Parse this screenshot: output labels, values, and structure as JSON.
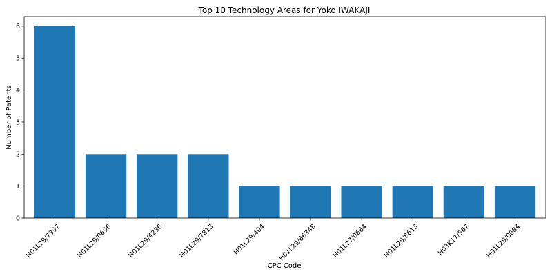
{
  "chart_data": {
    "type": "bar",
    "title": "Top 10 Technology Areas for Yoko IWAKAJI",
    "xlabel": "CPC Code",
    "ylabel": "Number of Patents",
    "categories": [
      "H01L29/7397",
      "H01L29/0696",
      "H01L29/4236",
      "H01L29/7813",
      "H01L29/404",
      "H01L29/66348",
      "H01L27/0664",
      "H01L29/8613",
      "H03K17/567",
      "H01L29/0684"
    ],
    "values": [
      6,
      2,
      2,
      2,
      1,
      1,
      1,
      1,
      1,
      1
    ],
    "ylim": [
      0,
      6.3
    ],
    "yticks": [
      0,
      1,
      2,
      3,
      4,
      5,
      6
    ],
    "bar_color": "#1f77b4",
    "grid": false,
    "legend": false
  }
}
